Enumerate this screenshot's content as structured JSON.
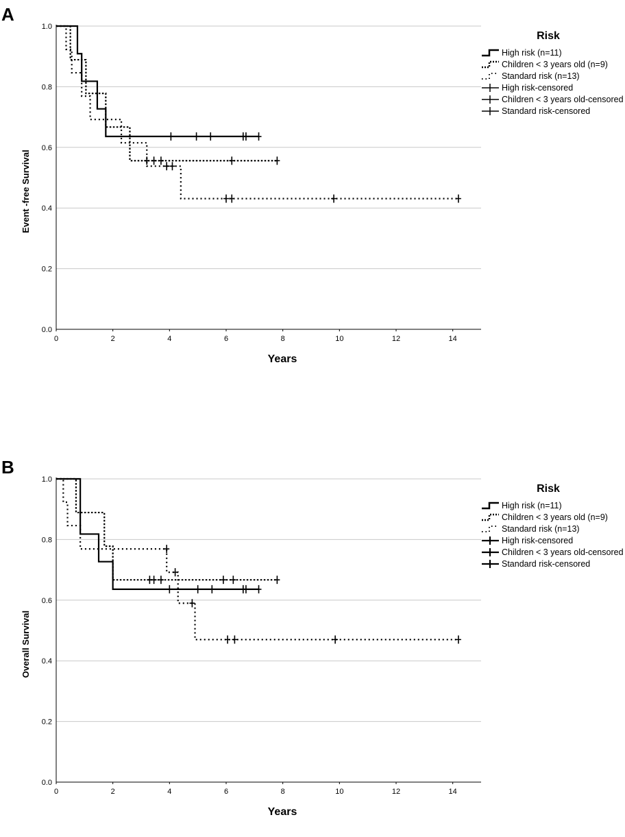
{
  "chart_data": [
    {
      "type": "line",
      "panel_label": "A",
      "xlabel": "Years",
      "ylabel": "Event -free Survival",
      "xlim": [
        0,
        15
      ],
      "ylim": [
        0,
        1.0
      ],
      "x_ticks": [
        "0",
        "2",
        "4",
        "6",
        "8",
        "10",
        "12",
        "14"
      ],
      "y_ticks": [
        "0.0",
        "0.2",
        "0.4",
        "0.6",
        "0.8",
        "1.0"
      ],
      "legend": {
        "title": "Risk",
        "items": [
          "High risk (n=11)",
          "Children < 3 years old (n=9)",
          "Standard risk (n=13)",
          "High risk-censored",
          "Children < 3 years old-censored",
          "Standard risk-censored"
        ]
      },
      "series": [
        {
          "name": "High risk (n=11)",
          "style": "solid",
          "steps": [
            [
              0,
              1.0
            ],
            [
              0.75,
              0.909
            ],
            [
              0.9,
              0.818
            ],
            [
              1.45,
              0.727
            ],
            [
              1.75,
              0.636
            ],
            [
              7.15,
              0.636
            ]
          ],
          "censored": [
            [
              4.05,
              0.636
            ],
            [
              4.95,
              0.636
            ],
            [
              5.45,
              0.636
            ],
            [
              6.6,
              0.636
            ],
            [
              6.7,
              0.636
            ],
            [
              7.15,
              0.636
            ]
          ]
        },
        {
          "name": "Children < 3 years old (n=9)",
          "style": "dotted",
          "steps": [
            [
              0,
              1.0
            ],
            [
              0.5,
              0.889
            ],
            [
              1.05,
              0.778
            ],
            [
              1.75,
              0.667
            ],
            [
              2.6,
              0.556
            ],
            [
              7.8,
              0.556
            ]
          ],
          "censored": [
            [
              3.2,
              0.556
            ],
            [
              3.45,
              0.556
            ],
            [
              3.7,
              0.556
            ],
            [
              6.2,
              0.556
            ],
            [
              7.8,
              0.556
            ]
          ]
        },
        {
          "name": "Standard risk (n=13)",
          "style": "dotted",
          "steps": [
            [
              0,
              1.0
            ],
            [
              0.35,
              0.923
            ],
            [
              0.55,
              0.846
            ],
            [
              0.9,
              0.769
            ],
            [
              1.2,
              0.692
            ],
            [
              2.3,
              0.615
            ],
            [
              3.2,
              0.538
            ],
            [
              4.4,
              0.431
            ],
            [
              14.2,
              0.431
            ]
          ],
          "censored": [
            [
              3.9,
              0.538
            ],
            [
              4.1,
              0.538
            ],
            [
              6.0,
              0.431
            ],
            [
              6.2,
              0.431
            ],
            [
              9.8,
              0.431
            ],
            [
              14.2,
              0.431
            ]
          ]
        }
      ]
    },
    {
      "type": "line",
      "panel_label": "B",
      "xlabel": "Years",
      "ylabel": "Overall Survival",
      "xlim": [
        0,
        15
      ],
      "ylim": [
        0,
        1.0
      ],
      "x_ticks": [
        "0",
        "2",
        "4",
        "6",
        "8",
        "10",
        "12",
        "14"
      ],
      "y_ticks": [
        "0.0",
        "0.2",
        "0.4",
        "0.6",
        "0.8",
        "1.0"
      ],
      "legend": {
        "title": "Risk",
        "items": [
          "High risk (n=11)",
          "Children < 3 years old (n=9)",
          "Standard risk (n=13)",
          "High risk-censored",
          "Children < 3 years old-censored",
          "Standard risk-censored"
        ]
      },
      "series": [
        {
          "name": "High risk (n=11)",
          "style": "solid",
          "steps": [
            [
              0,
              1.0
            ],
            [
              0.85,
              0.818
            ],
            [
              1.5,
              0.727
            ],
            [
              2.0,
              0.636
            ],
            [
              7.15,
              0.636
            ]
          ],
          "censored": [
            [
              4.0,
              0.636
            ],
            [
              5.0,
              0.636
            ],
            [
              5.5,
              0.636
            ],
            [
              6.6,
              0.636
            ],
            [
              6.7,
              0.636
            ],
            [
              7.15,
              0.636
            ]
          ]
        },
        {
          "name": "Children < 3 years old (n=9)",
          "style": "dotted",
          "steps": [
            [
              0,
              1.0
            ],
            [
              0.7,
              0.889
            ],
            [
              1.7,
              0.778
            ],
            [
              2.0,
              0.667
            ],
            [
              7.8,
              0.667
            ]
          ],
          "censored": [
            [
              3.3,
              0.667
            ],
            [
              3.45,
              0.667
            ],
            [
              3.7,
              0.667
            ],
            [
              5.9,
              0.667
            ],
            [
              6.25,
              0.667
            ],
            [
              7.8,
              0.667
            ]
          ]
        },
        {
          "name": "Standard risk (n=13)",
          "style": "dotted",
          "steps": [
            [
              0,
              1.0
            ],
            [
              0.25,
              0.923
            ],
            [
              0.4,
              0.846
            ],
            [
              0.85,
              0.769
            ],
            [
              3.9,
              0.692
            ],
            [
              4.3,
              0.59
            ],
            [
              4.9,
              0.47
            ],
            [
              14.2,
              0.47
            ]
          ],
          "censored": [
            [
              3.9,
              0.769
            ],
            [
              4.2,
              0.692
            ],
            [
              4.8,
              0.59
            ],
            [
              6.05,
              0.47
            ],
            [
              6.3,
              0.47
            ],
            [
              9.85,
              0.47
            ],
            [
              14.2,
              0.47
            ]
          ]
        }
      ]
    }
  ]
}
